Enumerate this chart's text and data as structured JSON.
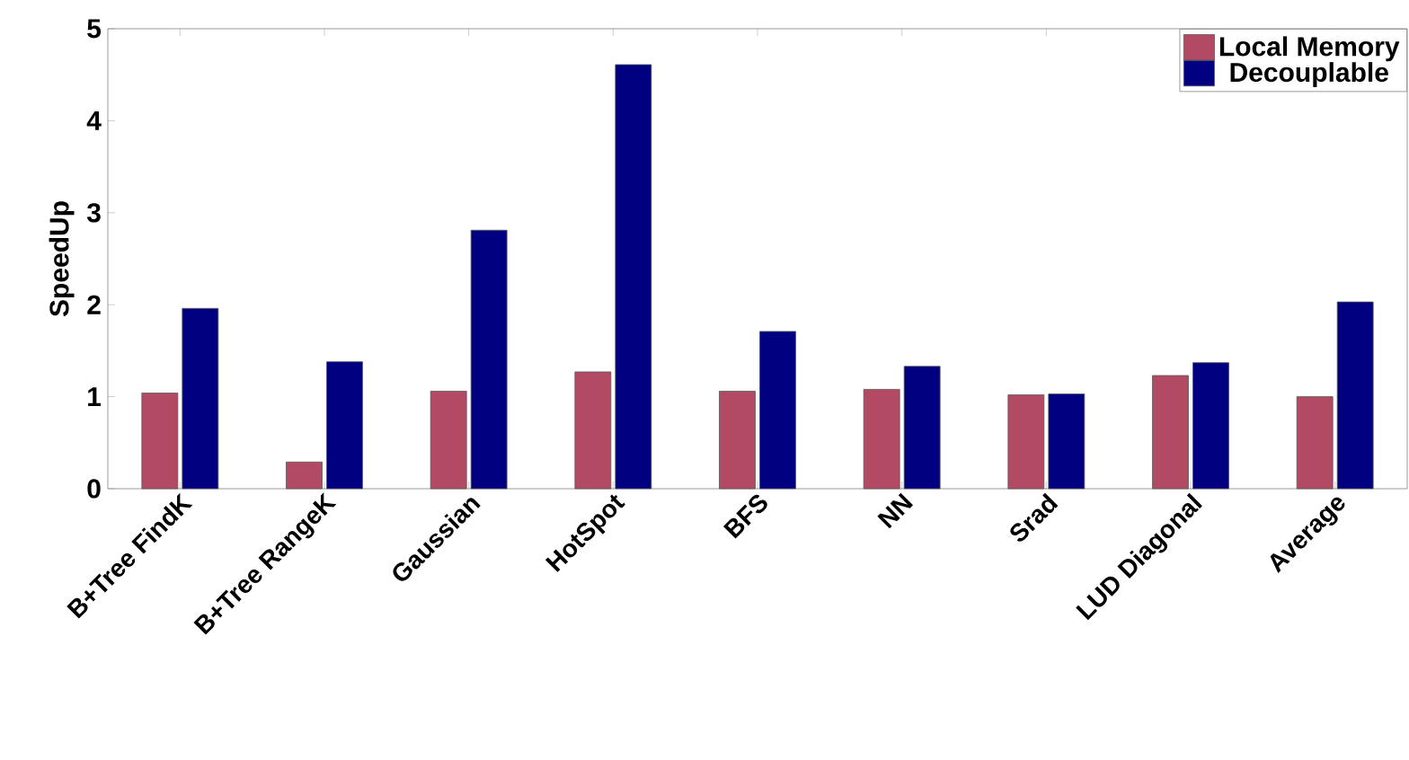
{
  "chart_data": {
    "type": "bar",
    "ylabel": "SpeedUp",
    "categories": [
      "B+Tree FindK",
      "B+Tree RangeK",
      "Gaussian",
      "HotSpot",
      "BFS",
      "NN",
      "Srad",
      "LUD Diagonal",
      "Average"
    ],
    "series": [
      {
        "name": "Local Memory",
        "color": "#b34a63",
        "values": [
          1.04,
          0.29,
          1.06,
          1.27,
          1.06,
          1.08,
          1.02,
          1.23,
          1.0
        ]
      },
      {
        "name": "Decouplable",
        "color": "#000080",
        "values": [
          1.96,
          1.38,
          2.81,
          4.61,
          1.71,
          1.33,
          1.03,
          1.37,
          2.03
        ]
      }
    ],
    "ylim": [
      0,
      5
    ],
    "yticks": [
      0,
      1,
      2,
      3,
      4,
      5
    ],
    "grid": false,
    "legend": "top right"
  }
}
